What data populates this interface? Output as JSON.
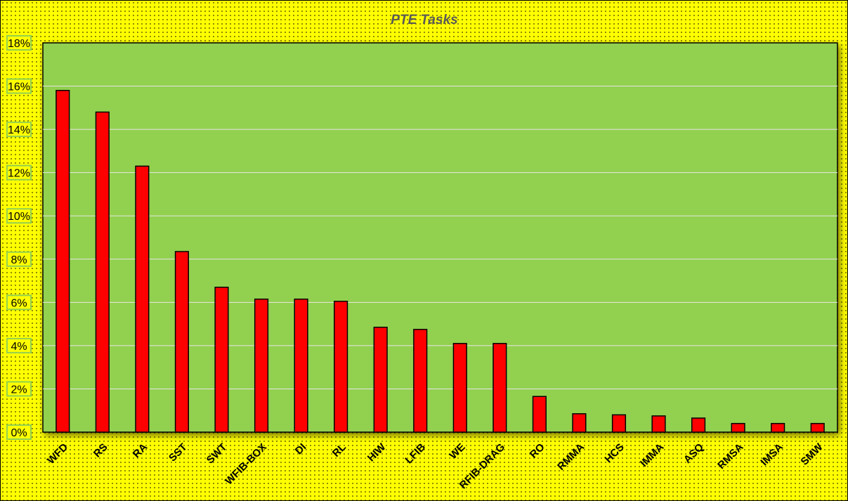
{
  "chart_data": {
    "type": "bar",
    "title": "PTE Tasks",
    "xlabel": "",
    "ylabel": "",
    "categories": [
      "WFD",
      "RS",
      "RA",
      "SST",
      "SWT",
      "WFIB-BOX",
      "DI",
      "RL",
      "HIW",
      "LFIB",
      "WE",
      "RFIB-DRAG",
      "RO",
      "RMMA",
      "HCS",
      "IMMA",
      "ASQ",
      "RMSA",
      "IMSA",
      "SMW"
    ],
    "series": [
      {
        "values": [
          15.8,
          14.8,
          12.3,
          8.35,
          6.7,
          6.15,
          6.15,
          6.05,
          4.85,
          4.75,
          4.1,
          4.1,
          1.65,
          0.85,
          0.8,
          0.75,
          0.65,
          0.4,
          0.4,
          0.4
        ]
      }
    ],
    "ylim": [
      0,
      18
    ],
    "yticks": [
      0,
      2,
      4,
      6,
      8,
      10,
      12,
      14,
      16,
      18
    ],
    "ytick_format": "%",
    "grid": true,
    "legend": "none",
    "colors": {
      "bar_fill": "#ff0000",
      "plot_background": "#92d050",
      "page_background": "#ffff00",
      "gridline": "#e6e6e6",
      "title": "#595959"
    }
  }
}
